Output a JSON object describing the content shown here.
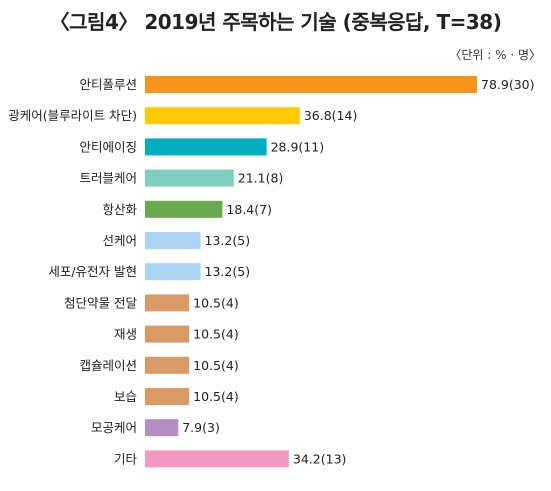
{
  "chart_data": {
    "type": "bar",
    "orientation": "horizontal",
    "title": "〈그림4〉 2019년 주목하는 기술 (중복응답, T=38)",
    "unit_label": "〈단위 : % · 명〉",
    "categories": [
      "안티폴루션",
      "광케어(블루라이트 차단)",
      "안티에이징",
      "트러블케어",
      "항산화",
      "선케어",
      "세포/유전자 발현",
      "첨단약물 전달",
      "재생",
      "캡슐레이션",
      "보습",
      "모공케어",
      "기타"
    ],
    "values": [
      78.9,
      36.8,
      28.9,
      21.1,
      18.4,
      13.2,
      13.2,
      10.5,
      10.5,
      10.5,
      10.5,
      7.9,
      34.2
    ],
    "labels": [
      "78.9(30)",
      "36.8(14)",
      "28.9(11)",
      "21.1(8)",
      "18.4(7)",
      "13.2(5)",
      "13.2(5)",
      "10.5(4)",
      "10.5(4)",
      "10.5(4)",
      "10.5(4)",
      "7.9(3)",
      "34.2(13)"
    ],
    "colors": [
      "#F7941D",
      "#FFCB05",
      "#00AEBE",
      "#7ECFC0",
      "#6AA84F",
      "#AAD4F2",
      "#AAD4F2",
      "#D99A66",
      "#D99A66",
      "#D99A66",
      "#D99A66",
      "#B48DC3",
      "#F49AC1"
    ],
    "xlim": [
      0,
      80
    ],
    "grid": false,
    "legend": "none"
  }
}
